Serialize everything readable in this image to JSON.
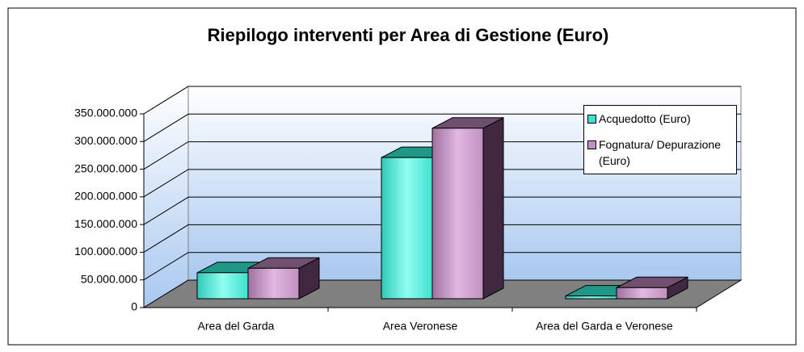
{
  "chart_data": {
    "type": "bar3d",
    "title": "Riepilogo interventi per Area di Gestione (Euro)",
    "categories": [
      "Area del Garda",
      "Area Veronese",
      "Area del Garda e Veronese"
    ],
    "series": [
      {
        "name": "Acquedotto (Euro)",
        "color": "#40e0d0",
        "values": [
          47000000,
          255000000,
          5000000
        ]
      },
      {
        "name": "Fognatura/ Depurazione (Euro)",
        "color": "#c090c0",
        "values": [
          55000000,
          308000000,
          20000000
        ]
      }
    ],
    "ylim": [
      0,
      350000000
    ],
    "yticks": [
      0,
      {
        "value": 50000000,
        "label": "50.000.000"
      },
      {
        "value": 100000000,
        "label": "100.000.000"
      },
      {
        "value": 150000000,
        "label": "150.000.000"
      },
      {
        "value": 200000000,
        "label": "200.000.000"
      },
      {
        "value": 250000000,
        "label": "250.000.000"
      },
      {
        "value": 300000000,
        "label": "300.000.000"
      },
      {
        "value": 350000000,
        "label": "350.000.000"
      }
    ],
    "grid": true,
    "legend": "top-right"
  }
}
